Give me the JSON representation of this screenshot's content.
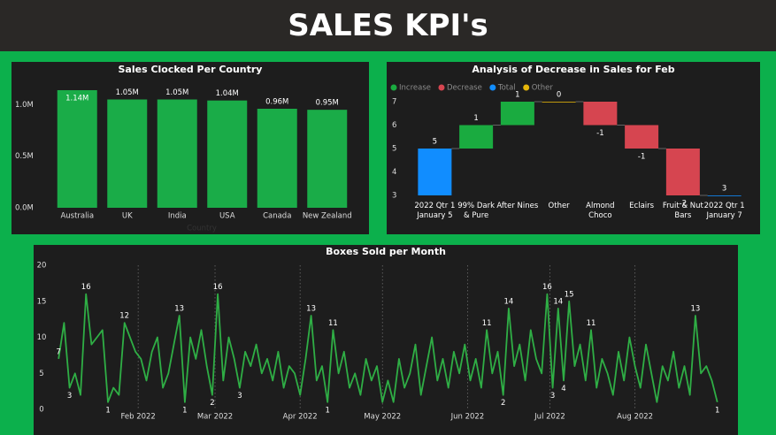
{
  "header": {
    "title": "SALES KPI's"
  },
  "chart_data": [
    {
      "type": "bar",
      "title": "Sales Clocked Per Country",
      "x_label": "Country",
      "categories": [
        "Australia",
        "UK",
        "India",
        "USA",
        "Canada",
        "New Zealand"
      ],
      "values": [
        1.14,
        1.05,
        1.05,
        1.04,
        0.96,
        0.95
      ],
      "value_labels": [
        "1.14M",
        "1.05M",
        "1.05M",
        "1.04M",
        "0.96M",
        "0.95M"
      ],
      "color": "#1aac48",
      "ylim": [
        0,
        1.2
      ],
      "yticks": [
        {
          "value": 0,
          "label": "0.0M"
        },
        {
          "value": 0.5,
          "label": "0.5M"
        },
        {
          "value": 1,
          "label": "1.0M"
        }
      ]
    },
    {
      "type": "waterfall",
      "title": "Analysis of Decrease in Sales for Feb",
      "legend": [
        {
          "name": "Increase",
          "color": "#1aab40"
        },
        {
          "name": "Decrease",
          "color": "#d64550"
        },
        {
          "name": "Total",
          "color": "#118dff"
        },
        {
          "name": "Other",
          "color": "#e6b60a"
        }
      ],
      "categories": [
        "2022 Qtr 1 January 5",
        "99% Dark & Pure",
        "After Nines",
        "Other",
        "Almond Choco",
        "Eclairs",
        "Fruit & Nut Bars",
        "2022 Qtr 1 January 7"
      ],
      "kinds": [
        "Total",
        "Increase",
        "Increase",
        "Other",
        "Decrease",
        "Decrease",
        "Decrease",
        "Total"
      ],
      "values": [
        5,
        1,
        1,
        0,
        -1,
        -1,
        -2,
        3
      ],
      "ylim": [
        3,
        7
      ],
      "yticks": [
        3,
        4,
        5,
        6,
        7
      ]
    },
    {
      "type": "line",
      "title": "Boxes Sold per Month",
      "color": "#2fae45",
      "x": [
        3,
        5,
        7,
        9,
        11,
        13,
        15,
        17,
        19,
        21,
        23,
        25,
        27,
        29,
        31,
        33,
        35,
        37,
        39,
        41,
        43,
        45,
        47,
        49,
        51,
        53,
        55,
        57,
        59,
        61,
        63,
        65,
        67,
        69,
        71,
        73,
        75,
        77,
        79,
        81,
        83,
        85,
        87,
        89,
        91,
        93,
        95,
        97,
        99,
        101,
        103,
        105,
        107,
        109,
        111,
        113,
        115,
        117,
        119,
        121,
        123,
        125,
        127,
        129,
        131,
        133,
        135,
        137,
        139,
        141,
        143,
        145,
        147,
        149,
        151,
        153,
        155,
        157,
        159,
        161,
        163,
        165,
        167,
        169,
        171,
        173,
        175,
        177,
        179,
        181,
        183,
        185,
        187,
        189,
        191,
        193,
        195,
        197,
        199,
        201,
        203,
        205,
        207,
        209,
        211,
        213,
        215,
        217,
        219,
        221,
        223,
        225,
        227,
        229,
        231,
        233,
        235,
        237,
        239,
        241,
        243
      ],
      "values": [
        7,
        12,
        3,
        5,
        2,
        16,
        9,
        10,
        11,
        1,
        3,
        2,
        12,
        10,
        8,
        7,
        4,
        8,
        10,
        3,
        5,
        9,
        13,
        1,
        10,
        7,
        11,
        6,
        2,
        16,
        4,
        10,
        7,
        3,
        8,
        6,
        9,
        5,
        7,
        4,
        8,
        3,
        6,
        5,
        2,
        7,
        13,
        4,
        6,
        1,
        11,
        5,
        8,
        3,
        5,
        2,
        7,
        4,
        6,
        1,
        4,
        1,
        7,
        3,
        5,
        9,
        2,
        6,
        10,
        4,
        7,
        3,
        8,
        5,
        9,
        4,
        7,
        3,
        11,
        5,
        8,
        2,
        14,
        6,
        9,
        4,
        11,
        7,
        5,
        16,
        3,
        14,
        4,
        15,
        6,
        9,
        4,
        11,
        3,
        7,
        5,
        2,
        8,
        4,
        10,
        6,
        3,
        9,
        5,
        1,
        6,
        4,
        8,
        3,
        6,
        2,
        13,
        5,
        6,
        4,
        1
      ],
      "value_labels": [
        7,
        null,
        3,
        null,
        null,
        16,
        null,
        null,
        null,
        1,
        null,
        null,
        12,
        null,
        null,
        null,
        null,
        null,
        null,
        null,
        null,
        null,
        13,
        1,
        null,
        null,
        null,
        null,
        2,
        16,
        null,
        null,
        null,
        3,
        null,
        null,
        null,
        null,
        null,
        null,
        null,
        null,
        null,
        null,
        null,
        null,
        13,
        null,
        null,
        1,
        11,
        null,
        null,
        null,
        null,
        null,
        null,
        null,
        null,
        null,
        null,
        null,
        null,
        null,
        null,
        null,
        null,
        null,
        null,
        null,
        null,
        null,
        null,
        null,
        null,
        null,
        null,
        null,
        11,
        null,
        null,
        2,
        14,
        null,
        null,
        null,
        null,
        null,
        null,
        16,
        3,
        14,
        4,
        15,
        null,
        null,
        null,
        11,
        null,
        null,
        null,
        null,
        null,
        null,
        null,
        null,
        null,
        null,
        null,
        null,
        null,
        null,
        null,
        null,
        null,
        null,
        13,
        null,
        null,
        null,
        1
      ],
      "xlim": [
        1,
        246
      ],
      "xticks": [
        {
          "value": 32,
          "label": "Feb 2022"
        },
        {
          "value": 60,
          "label": "Mar 2022"
        },
        {
          "value": 91,
          "label": "Apr 2022"
        },
        {
          "value": 121,
          "label": "May 2022"
        },
        {
          "value": 152,
          "label": "Jun 2022"
        },
        {
          "value": 182,
          "label": "Jul 2022"
        },
        {
          "value": 213,
          "label": "Aug 2022"
        }
      ],
      "ylim": [
        0,
        20
      ],
      "yticks": [
        0,
        5,
        10,
        15,
        20
      ],
      "grid": true
    }
  ]
}
